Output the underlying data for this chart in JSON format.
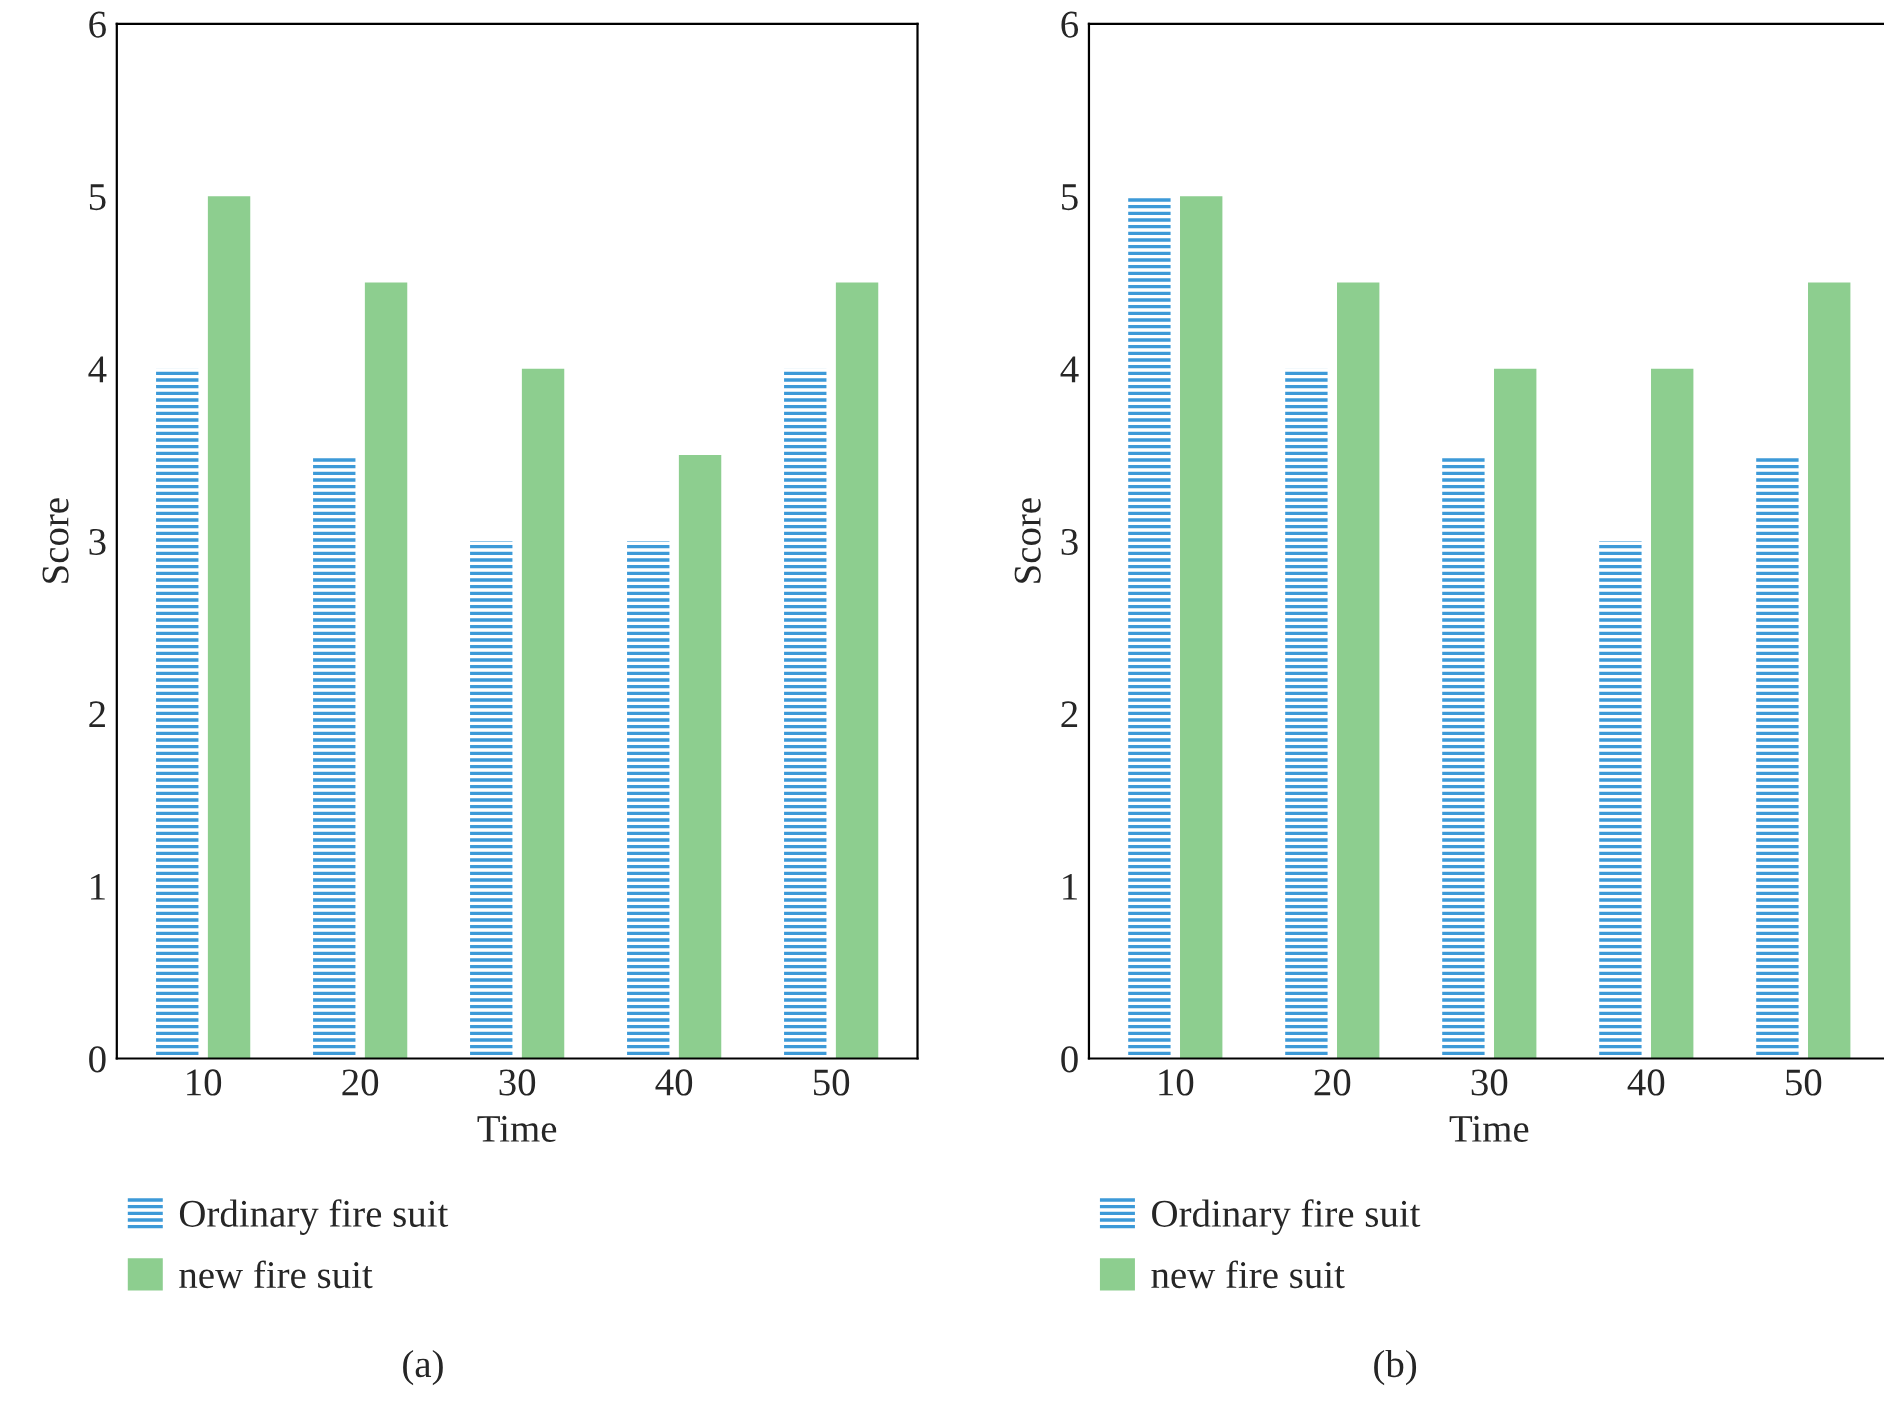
{
  "chart_data": [
    {
      "type": "bar",
      "xlabel": "Time",
      "ylabel": "Score",
      "categories": [
        "10",
        "20",
        "30",
        "40",
        "50"
      ],
      "series": [
        {
          "name": "Ordinary fire suit",
          "color": "#3d9ad8",
          "values": [
            4,
            3.5,
            3,
            3,
            4
          ]
        },
        {
          "name": "new fire suit",
          "color": "#8dce8f",
          "values": [
            5,
            4.5,
            4,
            3.5,
            4.5
          ]
        }
      ],
      "ylim": [
        0,
        6
      ],
      "yticks": [
        0,
        1,
        2,
        3,
        4,
        5,
        6
      ],
      "grid": false,
      "legend": "bottom",
      "annotations": [
        "(a)"
      ]
    },
    {
      "type": "bar",
      "xlabel": "Time",
      "ylabel": "Score",
      "categories": [
        "10",
        "20",
        "30",
        "40",
        "50"
      ],
      "series": [
        {
          "name": "Ordinary fire suit",
          "color": "#3d9ad8",
          "values": [
            5,
            4,
            3.5,
            3,
            3.5
          ]
        },
        {
          "name": "new fire suit",
          "color": "#8dce8f",
          "values": [
            5,
            4.5,
            4,
            4,
            4.5
          ]
        }
      ],
      "ylim": [
        0,
        6
      ],
      "yticks": [
        0,
        1,
        2,
        3,
        4,
        5,
        6
      ],
      "grid": false,
      "legend": "bottom",
      "annotations": [
        "(b)"
      ]
    }
  ]
}
